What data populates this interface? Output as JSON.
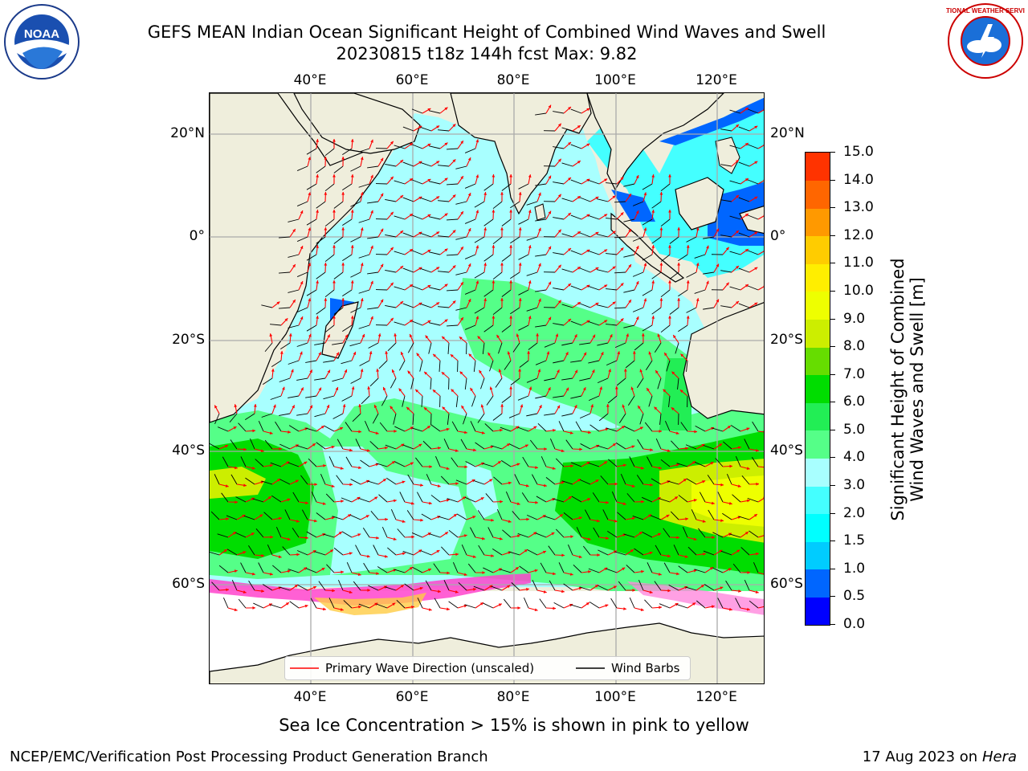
{
  "header": {
    "title_line1": "GEFS MEAN Indian Ocean Significant Height of Combined Wind Waves and Swell",
    "title_line2": "20230815 t18z 144h fcst   Max: 9.82"
  },
  "logos": {
    "noaa_text": "NOAA",
    "nws_text": "NATIONAL WEATHER SERVICE"
  },
  "map": {
    "lon_ticks": [
      "40°E",
      "60°E",
      "80°E",
      "100°E",
      "120°E"
    ],
    "lat_ticks_left": [
      "20°N",
      "0°",
      "20°S",
      "40°S",
      "60°S"
    ],
    "lat_ticks_right": [
      "20°N",
      "0°",
      "20°S",
      "40°S",
      "60°S"
    ],
    "extent": {
      "lon_min": 20,
      "lon_max": 129,
      "lat_min": -73,
      "lat_max": 27
    },
    "grid": true,
    "colors": {
      "land": "#efeedc",
      "sea_ice": "#ff44cc",
      "wave_arrow": "#ff0000",
      "wind_barb": "#000000"
    }
  },
  "colorbar": {
    "label_line1": "Significant Height of Combined",
    "label_line2": "Wind Waves and Swell [m]",
    "ticks": [
      "0.0",
      "0.5",
      "1.0",
      "1.5",
      "2.0",
      "3.0",
      "4.0",
      "5.0",
      "6.0",
      "7.0",
      "8.0",
      "9.0",
      "10.0",
      "11.0",
      "12.0",
      "13.0",
      "14.0",
      "15.0"
    ],
    "colors": [
      "#0000ff",
      "#0066ff",
      "#00ccff",
      "#00ffff",
      "#44ffff",
      "#a8ffff",
      "#55ff88",
      "#22ee55",
      "#00dd00",
      "#66dd00",
      "#ccee00",
      "#eeff00",
      "#ffee00",
      "#ffcc00",
      "#ff9900",
      "#ff6600",
      "#ff3300",
      "#ff0000"
    ]
  },
  "legend": {
    "wave_label": "Primary Wave Direction (unscaled)",
    "wind_label": "Wind Barbs"
  },
  "caption": "Sea Ice Concentration > 15% is shown in pink to yellow",
  "footer": {
    "left": "NCEP/EMC/Verification Post Processing Product Generation Branch",
    "right_date": "17 Aug 2023 on",
    "right_host": "Hera"
  }
}
